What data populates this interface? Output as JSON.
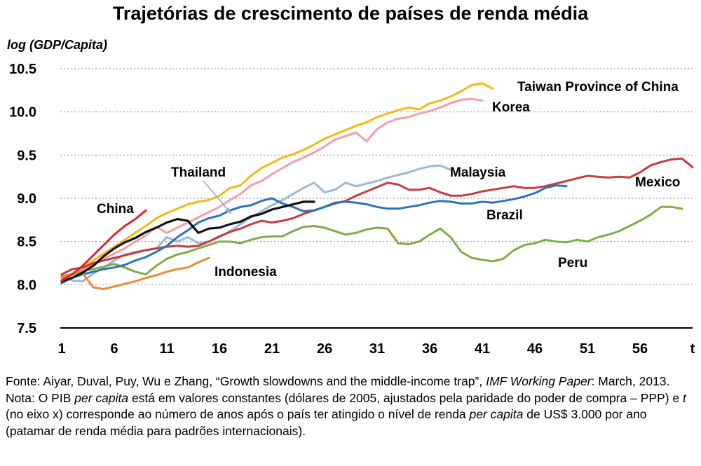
{
  "title": "Trajetórias de crescimento de países de renda média",
  "chart_data": {
    "type": "line",
    "ylabel": "log (GDP/Capita)",
    "xlabel": "t",
    "ylim": [
      7.5,
      10.5
    ],
    "xlim": [
      1,
      61
    ],
    "yticks": [
      "7.5",
      "8.0",
      "8.5",
      "9.0",
      "9.5",
      "10.0",
      "10.5"
    ],
    "xticks": [
      "1",
      "6",
      "11",
      "16",
      "21",
      "26",
      "31",
      "36",
      "41",
      "46",
      "51",
      "56",
      "t"
    ],
    "grid": "horizontal dotted",
    "legend": "labels placed on the chart next to each line",
    "series": [
      {
        "name": "Taiwan Province of China",
        "color": "#f6b90f",
        "x": [
          1,
          2,
          3,
          4,
          5,
          6,
          7,
          8,
          9,
          10,
          11,
          12,
          13,
          14,
          15,
          16,
          17,
          18,
          19,
          20,
          21,
          22,
          23,
          24,
          25,
          26,
          27,
          28,
          29,
          30,
          31,
          32,
          33,
          34,
          35,
          36,
          37,
          38,
          39,
          40,
          41,
          42
        ],
        "y": [
          8.05,
          8.12,
          8.2,
          8.28,
          8.36,
          8.44,
          8.52,
          8.6,
          8.68,
          8.77,
          8.83,
          8.88,
          8.93,
          8.96,
          8.98,
          9.03,
          9.12,
          9.15,
          9.26,
          9.35,
          9.41,
          9.47,
          9.51,
          9.56,
          9.62,
          9.69,
          9.74,
          9.79,
          9.84,
          9.88,
          9.94,
          9.98,
          10.02,
          10.05,
          10.03,
          10.1,
          10.13,
          10.18,
          10.24,
          10.31,
          10.33,
          10.27
        ]
      },
      {
        "name": "Korea",
        "color": "#f0a0a4",
        "x": [
          1,
          2,
          3,
          4,
          5,
          6,
          7,
          8,
          9,
          10,
          11,
          12,
          13,
          14,
          15,
          16,
          17,
          18,
          19,
          20,
          21,
          22,
          23,
          24,
          25,
          26,
          27,
          28,
          29,
          30,
          31,
          32,
          33,
          34,
          35,
          36,
          37,
          38,
          39,
          40,
          41
        ],
        "y": [
          8.08,
          8.13,
          8.18,
          8.22,
          8.3,
          8.36,
          8.42,
          8.5,
          8.57,
          8.67,
          8.6,
          8.66,
          8.72,
          8.78,
          8.84,
          8.9,
          8.98,
          9.05,
          9.15,
          9.2,
          9.28,
          9.35,
          9.42,
          9.47,
          9.53,
          9.6,
          9.68,
          9.72,
          9.76,
          9.66,
          9.8,
          9.88,
          9.92,
          9.94,
          9.98,
          10.01,
          10.05,
          10.1,
          10.14,
          10.15,
          10.13
        ]
      },
      {
        "name": "Malaysia",
        "color": "#9db7d9",
        "x": [
          1,
          2,
          3,
          4,
          5,
          6,
          7,
          8,
          9,
          10,
          11,
          12,
          13,
          14,
          15,
          16,
          17,
          18,
          19,
          20,
          21,
          22,
          23,
          24,
          25,
          26,
          27,
          28,
          29,
          30,
          31,
          32,
          33,
          34,
          35,
          36,
          37,
          38
        ],
        "y": [
          8.1,
          8.05,
          8.04,
          8.13,
          8.2,
          8.28,
          8.35,
          8.38,
          8.4,
          8.42,
          8.55,
          8.5,
          8.55,
          8.48,
          8.5,
          8.55,
          8.62,
          8.7,
          8.78,
          8.85,
          8.92,
          8.98,
          9.05,
          9.12,
          9.18,
          9.07,
          9.1,
          9.18,
          9.14,
          9.17,
          9.2,
          9.24,
          9.27,
          9.3,
          9.34,
          9.37,
          9.38,
          9.33
        ]
      },
      {
        "name": "Mexico",
        "color": "#c83a41",
        "x": [
          1,
          2,
          3,
          4,
          5,
          6,
          7,
          8,
          9,
          10,
          11,
          12,
          13,
          14,
          15,
          16,
          17,
          18,
          19,
          20,
          21,
          22,
          23,
          24,
          25,
          26,
          27,
          28,
          29,
          30,
          31,
          32,
          33,
          34,
          35,
          36,
          37,
          38,
          39,
          40,
          41,
          42,
          43,
          44,
          45,
          46,
          47,
          48,
          49,
          50,
          51,
          52,
          53,
          54,
          55,
          56,
          57,
          58,
          59,
          60,
          61
        ],
        "y": [
          8.12,
          8.18,
          8.2,
          8.25,
          8.28,
          8.31,
          8.34,
          8.37,
          8.4,
          8.42,
          8.44,
          8.45,
          8.44,
          8.45,
          8.5,
          8.56,
          8.61,
          8.65,
          8.7,
          8.74,
          8.72,
          8.74,
          8.77,
          8.82,
          8.86,
          8.9,
          8.94,
          8.97,
          9.03,
          9.08,
          9.13,
          9.18,
          9.16,
          9.1,
          9.1,
          9.12,
          9.07,
          9.03,
          9.03,
          9.05,
          9.08,
          9.1,
          9.12,
          9.14,
          9.12,
          9.12,
          9.14,
          9.17,
          9.2,
          9.23,
          9.26,
          9.25,
          9.24,
          9.25,
          9.24,
          9.3,
          9.38,
          9.42,
          9.45,
          9.46,
          9.36
        ]
      },
      {
        "name": "Brazil",
        "color": "#2b74bc",
        "x": [
          1,
          2,
          3,
          4,
          5,
          6,
          7,
          8,
          9,
          10,
          11,
          12,
          13,
          14,
          15,
          16,
          17,
          18,
          19,
          20,
          21,
          22,
          23,
          24,
          25,
          26,
          27,
          28,
          29,
          30,
          31,
          32,
          33,
          34,
          35,
          36,
          37,
          38,
          39,
          40,
          41,
          42,
          43,
          44,
          45,
          46,
          47,
          48,
          49
        ],
        "y": [
          8.02,
          8.08,
          8.12,
          8.15,
          8.18,
          8.2,
          8.23,
          8.28,
          8.32,
          8.38,
          8.45,
          8.55,
          8.63,
          8.72,
          8.77,
          8.8,
          8.86,
          8.9,
          8.92,
          8.97,
          9.0,
          8.94,
          8.9,
          8.85,
          8.86,
          8.9,
          8.95,
          8.96,
          8.95,
          8.93,
          8.9,
          8.88,
          8.88,
          8.9,
          8.92,
          8.95,
          8.97,
          8.96,
          8.94,
          8.94,
          8.96,
          8.95,
          8.97,
          8.99,
          9.02,
          9.06,
          9.12,
          9.15,
          9.14
        ]
      },
      {
        "name": "Thailand",
        "color": "#111111",
        "x": [
          1,
          2,
          3,
          4,
          5,
          6,
          7,
          8,
          9,
          10,
          11,
          12,
          13,
          14,
          15,
          16,
          17,
          18,
          19,
          20,
          21,
          22,
          23,
          24,
          25
        ],
        "y": [
          8.04,
          8.08,
          8.14,
          8.22,
          8.33,
          8.42,
          8.49,
          8.54,
          8.61,
          8.66,
          8.72,
          8.76,
          8.74,
          8.6,
          8.65,
          8.66,
          8.7,
          8.73,
          8.79,
          8.82,
          8.87,
          8.9,
          8.93,
          8.96,
          8.96
        ]
      },
      {
        "name": "China",
        "color": "#e02233",
        "x": [
          1,
          2,
          3,
          4,
          5,
          6,
          7,
          8,
          9
        ],
        "y": [
          8.05,
          8.12,
          8.22,
          8.34,
          8.46,
          8.58,
          8.68,
          8.76,
          8.86
        ]
      },
      {
        "name": "Indonesia",
        "color": "#ee8a33",
        "x": [
          1,
          2,
          3,
          4,
          5,
          6,
          7,
          8,
          9,
          10,
          11,
          12,
          13,
          14,
          15
        ],
        "y": [
          8.08,
          8.12,
          8.13,
          7.97,
          7.95,
          7.98,
          8.01,
          8.04,
          8.08,
          8.11,
          8.15,
          8.18,
          8.2,
          8.26,
          8.31
        ]
      },
      {
        "name": "Peru",
        "color": "#7fad44",
        "x": [
          1,
          2,
          3,
          4,
          5,
          6,
          7,
          8,
          9,
          10,
          11,
          12,
          13,
          14,
          15,
          16,
          17,
          18,
          19,
          20,
          21,
          22,
          23,
          24,
          25,
          26,
          27,
          28,
          29,
          30,
          31,
          32,
          33,
          34,
          35,
          36,
          37,
          38,
          39,
          40,
          41,
          42,
          43,
          44,
          45,
          46,
          47,
          48,
          49,
          50,
          51,
          52,
          53,
          54,
          55,
          56,
          57,
          58,
          59,
          60
        ],
        "y": [
          8.1,
          8.12,
          8.16,
          8.18,
          8.21,
          8.24,
          8.2,
          8.15,
          8.12,
          8.22,
          8.3,
          8.35,
          8.38,
          8.42,
          8.46,
          8.5,
          8.5,
          8.48,
          8.52,
          8.55,
          8.56,
          8.56,
          8.62,
          8.67,
          8.68,
          8.66,
          8.62,
          8.58,
          8.6,
          8.64,
          8.66,
          8.65,
          8.48,
          8.47,
          8.5,
          8.58,
          8.65,
          8.55,
          8.38,
          8.31,
          8.29,
          8.27,
          8.3,
          8.4,
          8.46,
          8.48,
          8.52,
          8.5,
          8.49,
          8.52,
          8.5,
          8.55,
          8.58,
          8.62,
          8.68,
          8.74,
          8.81,
          8.9,
          8.9,
          8.88
        ]
      }
    ]
  },
  "footnotes": {
    "source_prefix": "Fonte: Aiyar, Duval, Puy, Wu e Zhang, “Growth slowdowns and the middle-income trap”, ",
    "source_journal": "IMF Working Paper",
    "source_suffix": ": March, 2013.",
    "note_1": "Nota: O PIB ",
    "note_pc_1": "per capita",
    "note_2": " está em valores constantes (dólares de 2005, ajustados pela paridade do poder de compra – PPP) e ",
    "note_t": "t",
    "note_3": " (no eixo x) corresponde ao número de anos após o país ter atingido o nível de renda ",
    "note_pc_2": "per capita",
    "note_4": " de US$ 3.000 por ano (patamar de renda média para padrões internacionais)."
  }
}
